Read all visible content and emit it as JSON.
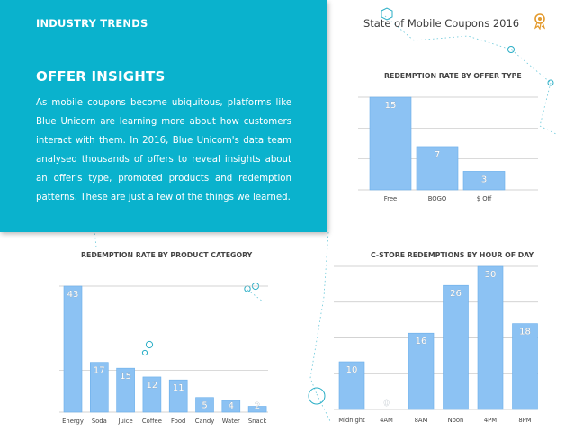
{
  "header": {
    "section_label": "INDUSTRY TRENDS",
    "report_title": "State of Mobile Coupons 2016",
    "ribbon_icon": "ribbon-badge-icon"
  },
  "insights": {
    "title": "OFFER INSIGHTS",
    "body": "As mobile coupons become ubiquitous, platforms like Blue Unicorn are learning more about how customers interact with them. In 2016, Blue Unicorn's data team analysed thousands of offers to reveal insights about an offer's type, promoted products and redemption patterns. These are just a few of the things we learned."
  },
  "colors": {
    "panel": "#0ab2cd",
    "bar": "#8cc2f3",
    "bar_edge": "#6aaeea",
    "grid": "#c4c4c4",
    "text": "#3c3c3c"
  },
  "chart_data": [
    {
      "type": "bar",
      "title": "REDEMPTION RATE BY OFFER TYPE",
      "categories": [
        "Free",
        "BOGO",
        "$ Off"
      ],
      "values": [
        15,
        7,
        3
      ],
      "ylim": [
        0,
        15
      ],
      "grid": true
    },
    {
      "type": "bar",
      "title": "REDEMPTION RATE BY PRODUCT CATEGORY",
      "categories": [
        "Energy",
        "Soda",
        "Juice",
        "Coffee",
        "Food",
        "Candy",
        "Water",
        "Snack"
      ],
      "values": [
        43,
        17,
        15,
        12,
        11,
        5,
        4,
        2
      ],
      "ylim": [
        0,
        43
      ],
      "grid": true
    },
    {
      "type": "bar",
      "title": "C-STORE REDEMPTIONS BY HOUR OF DAY",
      "categories": [
        "Midnight",
        "4AM",
        "8AM",
        "Noon",
        "4PM",
        "8PM"
      ],
      "values": [
        10,
        0,
        16,
        26,
        30,
        18
      ],
      "ylim": [
        0,
        30
      ],
      "grid": true
    }
  ]
}
